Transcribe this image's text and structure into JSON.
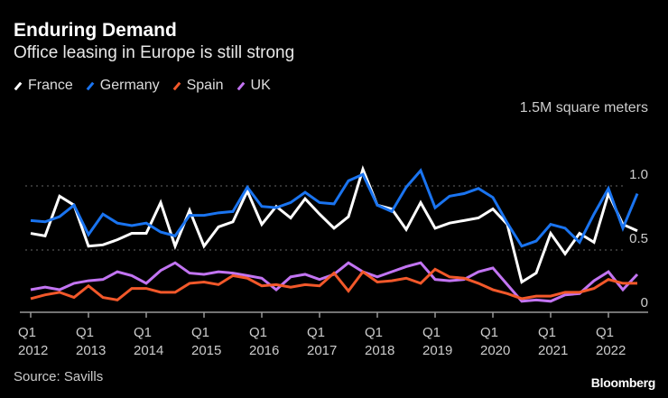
{
  "title": "Enduring Demand",
  "subtitle": "Office leasing in Europe is still strong",
  "source": "Source: Savills",
  "logo": "Bloomberg",
  "chart_data": {
    "type": "line",
    "ylabel": "1.5M square meters",
    "ylim": [
      0,
      1.5
    ],
    "y_ticks": [
      {
        "value": 0,
        "label": "0"
      },
      {
        "value": 0.5,
        "label": "0.5"
      },
      {
        "value": 1.0,
        "label": "1.0"
      }
    ],
    "grid": "dotted horizontal at 0.5 and 1.0",
    "legend_position": "top-left",
    "x_ticks": [
      {
        "q": "Q1",
        "year": "2012"
      },
      {
        "q": "Q1",
        "year": "2013"
      },
      {
        "q": "Q1",
        "year": "2014"
      },
      {
        "q": "Q1",
        "year": "2015"
      },
      {
        "q": "Q1",
        "year": "2016"
      },
      {
        "q": "Q1",
        "year": "2017"
      },
      {
        "q": "Q1",
        "year": "2018"
      },
      {
        "q": "Q1",
        "year": "2019"
      },
      {
        "q": "Q1",
        "year": "2020"
      },
      {
        "q": "Q1",
        "year": "2021"
      },
      {
        "q": "Q1",
        "year": "2022"
      }
    ],
    "categories": [
      "Q1 2012",
      "Q2 2012",
      "Q3 2012",
      "Q4 2012",
      "Q1 2013",
      "Q2 2013",
      "Q3 2013",
      "Q4 2013",
      "Q1 2014",
      "Q2 2014",
      "Q3 2014",
      "Q4 2014",
      "Q1 2015",
      "Q2 2015",
      "Q3 2015",
      "Q4 2015",
      "Q1 2016",
      "Q2 2016",
      "Q3 2016",
      "Q4 2016",
      "Q1 2017",
      "Q2 2017",
      "Q3 2017",
      "Q4 2017",
      "Q1 2018",
      "Q2 2018",
      "Q3 2018",
      "Q4 2018",
      "Q1 2019",
      "Q2 2019",
      "Q3 2019",
      "Q4 2019",
      "Q1 2020",
      "Q2 2020",
      "Q3 2020",
      "Q4 2020",
      "Q1 2021",
      "Q2 2021",
      "Q3 2021",
      "Q4 2021",
      "Q1 2022",
      "Q2 2022",
      "Q3 2022"
    ],
    "series": [
      {
        "name": "France",
        "color": "#ffffff",
        "values": [
          0.63,
          0.61,
          0.92,
          0.85,
          0.53,
          0.54,
          0.58,
          0.63,
          0.63,
          0.87,
          0.53,
          0.81,
          0.53,
          0.68,
          0.72,
          0.96,
          0.7,
          0.84,
          0.75,
          0.9,
          0.78,
          0.67,
          0.76,
          1.13,
          0.85,
          0.82,
          0.66,
          0.87,
          0.67,
          0.71,
          0.73,
          0.75,
          0.82,
          0.7,
          0.25,
          0.32,
          0.63,
          0.47,
          0.63,
          0.56,
          0.94,
          0.7,
          0.65
        ]
      },
      {
        "name": "Germany",
        "color": "#1a74f0",
        "values": [
          0.73,
          0.72,
          0.76,
          0.85,
          0.62,
          0.78,
          0.71,
          0.69,
          0.71,
          0.64,
          0.61,
          0.77,
          0.77,
          0.79,
          0.8,
          0.99,
          0.84,
          0.83,
          0.87,
          0.95,
          0.87,
          0.86,
          1.04,
          1.09,
          0.85,
          0.8,
          0.99,
          1.12,
          0.83,
          0.92,
          0.94,
          0.98,
          0.91,
          0.71,
          0.53,
          0.57,
          0.7,
          0.67,
          0.56,
          0.78,
          0.98,
          0.67,
          0.94
        ]
      },
      {
        "name": "Spain",
        "color": "#f2582a",
        "values": [
          0.12,
          0.15,
          0.17,
          0.13,
          0.22,
          0.13,
          0.11,
          0.2,
          0.2,
          0.17,
          0.17,
          0.24,
          0.25,
          0.23,
          0.3,
          0.28,
          0.22,
          0.23,
          0.21,
          0.23,
          0.22,
          0.32,
          0.18,
          0.33,
          0.25,
          0.26,
          0.28,
          0.24,
          0.35,
          0.29,
          0.28,
          0.24,
          0.19,
          0.16,
          0.12,
          0.14,
          0.14,
          0.17,
          0.17,
          0.2,
          0.27,
          0.24,
          0.24
        ]
      },
      {
        "name": "UK",
        "color": "#c274f2",
        "values": [
          0.19,
          0.21,
          0.19,
          0.24,
          0.26,
          0.27,
          0.33,
          0.3,
          0.24,
          0.34,
          0.4,
          0.32,
          0.31,
          0.33,
          0.32,
          0.3,
          0.28,
          0.19,
          0.29,
          0.31,
          0.27,
          0.31,
          0.4,
          0.33,
          0.29,
          0.33,
          0.37,
          0.4,
          0.27,
          0.26,
          0.27,
          0.33,
          0.36,
          0.23,
          0.1,
          0.11,
          0.1,
          0.15,
          0.16,
          0.26,
          0.33,
          0.19,
          0.31
        ]
      }
    ]
  }
}
